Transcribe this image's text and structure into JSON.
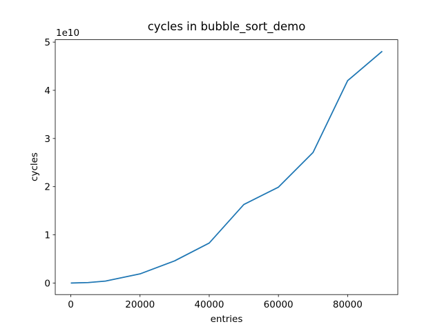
{
  "chart_data": {
    "type": "line",
    "title": "cycles in bubble_sort_demo",
    "x_label": "entries",
    "y_label": "cycles",
    "y_offset_label": "1e10",
    "x": [
      0,
      5000,
      10000,
      20000,
      30000,
      40000,
      50000,
      60000,
      70000,
      80000,
      90000
    ],
    "series": [
      {
        "name": "cycles",
        "color": "#1f77b4",
        "values": [
          0,
          0.01,
          0.04,
          0.19,
          0.46,
          0.83,
          1.63,
          1.99,
          2.71,
          4.2,
          4.81
        ]
      }
    ],
    "xlim": [
      -4500,
      94500
    ],
    "xticks": [
      0,
      20000,
      40000,
      60000,
      80000
    ],
    "ylim": [
      -0.24,
      5.05
    ],
    "yticks": [
      0,
      1,
      2,
      3,
      4,
      5
    ],
    "grid": false
  }
}
